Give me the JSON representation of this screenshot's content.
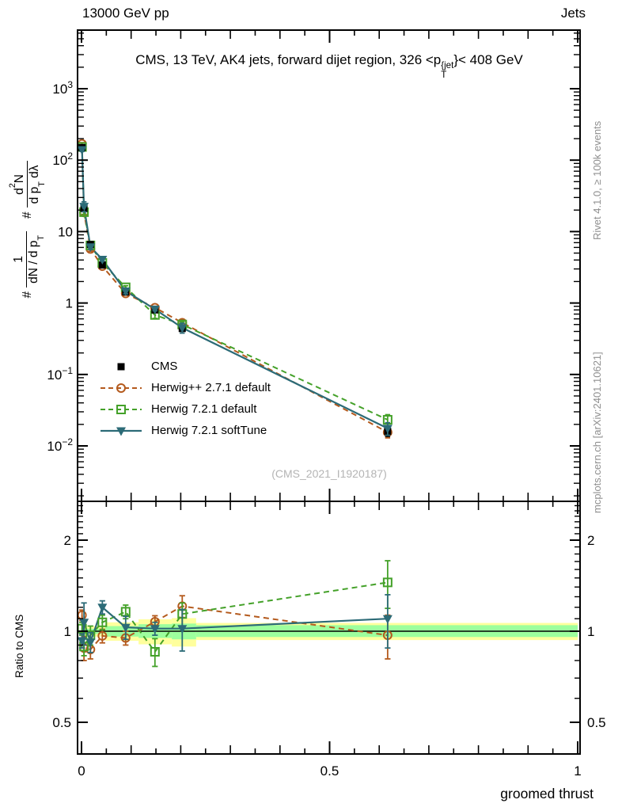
{
  "header": {
    "left": "13000 GeV pp",
    "right": "Jets"
  },
  "title": {
    "segments": [
      {
        "t": "CMS, 13 TeV, AK4 jets, forward dijet region, 326 <p"
      },
      {
        "stack": {
          "sup": "{jet",
          "sub": "T"
        }
      },
      {
        "t": "}< 408 GeV"
      }
    ]
  },
  "ylabel_main": {
    "frac1": {
      "prefix": "#",
      "num": [
        {
          "t": "1"
        }
      ],
      "den": [
        {
          "t": "dN / d p"
        },
        {
          "sub": "T"
        }
      ]
    },
    "frac2": {
      "prefix": "#",
      "num": [
        {
          "t": "d"
        },
        {
          "sup": "2"
        },
        {
          "t": "N"
        }
      ],
      "den": [
        {
          "t": "d p"
        },
        {
          "sub": "T"
        },
        {
          "t": " dλ"
        }
      ]
    }
  },
  "ratio_ylabel": "Ratio to CMS",
  "xlabel": "groomed thrust",
  "watermark": "(CMS_2021_I1920187)",
  "captions": {
    "rivet": "Rivet 4.1.0, ≥ 100k events",
    "mcplots": "mcplots.cern.ch [arXiv:2401.10621]"
  },
  "legend": {
    "rows": [
      {
        "key": "cms",
        "label": "CMS"
      },
      {
        "key": "herwigpp",
        "label": "Herwig++ 2.7.1 default"
      },
      {
        "key": "h7def",
        "label": "Herwig 7.2.1 default"
      },
      {
        "key": "h7soft",
        "label": "Herwig 7.2.1 softTune"
      }
    ]
  },
  "chart_data": {
    "type": "line",
    "title": "CMS, 13 TeV, AK4 jets, forward dijet region, 326 <p_T^{jet}< 408 GeV",
    "xlabel": "groomed thrust",
    "ylabel": "# 1/(dN/dp_T) d^2N/(dp_T dlambda)",
    "ratio_ylabel": "Ratio to CMS",
    "x": [
      0.001,
      0.005,
      0.018,
      0.042,
      0.089,
      0.148,
      0.203,
      0.617
    ],
    "x_axis": {
      "min": 0,
      "max": 1,
      "major_labels": [
        {
          "v": 0,
          "t": "0"
        },
        {
          "v": 0.5,
          "t": "0.5"
        },
        {
          "v": 1,
          "t": "1"
        }
      ]
    },
    "main_axis": {
      "scale": "log",
      "min": 0.0017,
      "max": 6300,
      "labels": [
        {
          "v": 1000,
          "base": "10",
          "exp": "3"
        },
        {
          "v": 100,
          "base": "10",
          "exp": "2"
        },
        {
          "v": 10,
          "base": "10",
          "exp": ""
        },
        {
          "v": 1,
          "base": "1",
          "exp": ""
        },
        {
          "v": 0.1,
          "base": "10",
          "exp": "−1"
        },
        {
          "v": 0.01,
          "base": "10",
          "exp": "−2"
        }
      ]
    },
    "ratio_axis": {
      "scale": "log",
      "min": 0.4,
      "max": 2.65,
      "labels": [
        {
          "v": 2,
          "t": "2"
        },
        {
          "v": 1,
          "t": "1"
        },
        {
          "v": 0.5,
          "t": "0.5"
        }
      ]
    },
    "series": [
      {
        "key": "cms",
        "name": "CMS",
        "color": "#000000",
        "line": "none",
        "marker": "square-filled",
        "values": [
          150,
          21,
          6.6,
          3.4,
          1.43,
          0.8,
          0.44,
          0.016
        ],
        "err_frac": [
          0.04,
          0.04,
          0.04,
          0.05,
          0.05,
          0.06,
          0.08,
          0.15
        ]
      },
      {
        "key": "herwigpp",
        "name": "Herwig++ 2.7.1 default",
        "color": "#b45a1d",
        "line": "dashed",
        "marker": "circle-open",
        "values": [
          169,
          18.5,
          5.7,
          3.28,
          1.36,
          0.86,
          0.53,
          0.0155
        ],
        "ratio": [
          1.13,
          0.88,
          0.87,
          0.965,
          0.95,
          1.075,
          1.21,
          0.97
        ],
        "ratio_err": [
          0.045,
          0.08,
          0.06,
          0.05,
          0.05,
          0.05,
          0.1,
          0.16
        ]
      },
      {
        "key": "h7def",
        "name": "Herwig 7.2.1 default",
        "color": "#44a129",
        "line": "dashed",
        "marker": "square-open",
        "values": [
          153,
          18.7,
          6.4,
          3.64,
          1.66,
          0.68,
          0.5,
          0.0232
        ],
        "ratio": [
          1.02,
          0.89,
          0.97,
          1.07,
          1.16,
          0.855,
          1.14,
          1.45
        ],
        "ratio_err": [
          0.05,
          0.06,
          0.07,
          0.06,
          0.06,
          0.09,
          0.1,
          0.26
        ]
      },
      {
        "key": "h7soft",
        "name": "Herwig 7.2.1 softTune",
        "color": "#2c6b77",
        "line": "solid",
        "marker": "triangle-down-filled",
        "values": [
          140,
          22.5,
          6.1,
          4.08,
          1.47,
          0.82,
          0.45,
          0.0176
        ],
        "ratio": [
          0.93,
          1.07,
          0.92,
          1.2,
          1.03,
          1.02,
          1.02,
          1.1
        ],
        "ratio_err": [
          0.05,
          0.17,
          0.07,
          0.06,
          0.09,
          0.05,
          0.16,
          0.22
        ]
      }
    ],
    "bands": {
      "yellow_color": "#ffff9d",
      "green_color": "#9dff9d",
      "segments": [
        {
          "x0": 0.0,
          "x1": 0.048,
          "yellow": [
            0.96,
            1.04
          ],
          "green": [
            0.98,
            1.02
          ]
        },
        {
          "x0": 0.048,
          "x1": 0.115,
          "yellow": [
            0.93,
            1.07
          ],
          "green": [
            0.96,
            1.04
          ]
        },
        {
          "x0": 0.115,
          "x1": 0.182,
          "yellow": [
            0.905,
            1.095
          ],
          "green": [
            0.95,
            1.055
          ]
        },
        {
          "x0": 0.182,
          "x1": 0.231,
          "yellow": [
            0.89,
            1.105
          ],
          "green": [
            0.94,
            1.06
          ]
        },
        {
          "x0": 0.231,
          "x1": 1.0,
          "yellow": [
            0.935,
            1.065
          ],
          "green": [
            0.957,
            1.047
          ]
        }
      ]
    }
  }
}
